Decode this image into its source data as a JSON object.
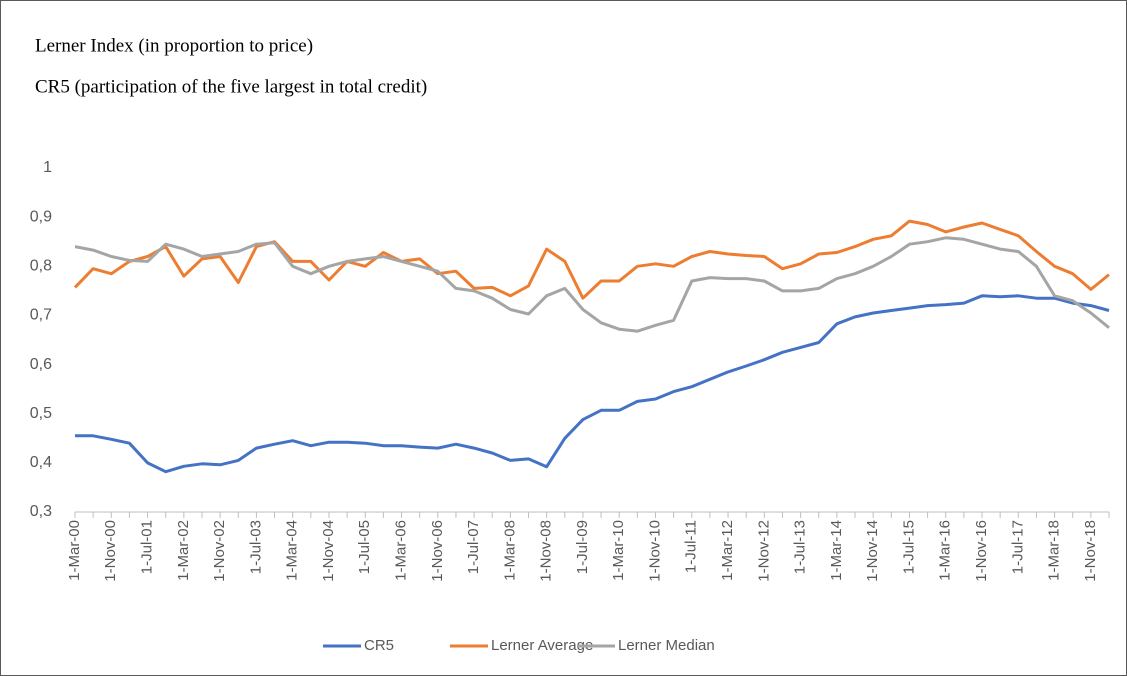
{
  "chart_data": {
    "type": "line",
    "title": "Lerner Index (in proportion to price)",
    "subtitle": "CR5 (participation of the five largest in total credit)",
    "categories": [
      "1-Mar-00",
      null,
      "1-Nov-00",
      null,
      "1-Jul-01",
      null,
      "1-Mar-02",
      null,
      "1-Nov-02",
      null,
      "1-Jul-03",
      null,
      "1-Mar-04",
      null,
      "1-Nov-04",
      null,
      "1-Jul-05",
      null,
      "1-Mar-06",
      null,
      "1-Nov-06",
      null,
      "1-Jul-07",
      null,
      "1-Mar-08",
      null,
      "1-Nov-08",
      null,
      "1-Jul-09",
      null,
      "1-Mar-10",
      null,
      "1-Nov-10",
      null,
      "1-Jul-11",
      null,
      "1-Mar-12",
      null,
      "1-Nov-12",
      null,
      "1-Jul-13",
      null,
      "1-Mar-14",
      null,
      "1-Nov-14",
      null,
      "1-Jul-15",
      null,
      "1-Mar-16",
      null,
      "1-Nov-16",
      null,
      "1-Jul-17",
      null,
      "1-Mar-18",
      null,
      "1-Nov-18",
      null
    ],
    "series": [
      {
        "name": "CR5",
        "color": "#4472c4",
        "values": [
          0.455,
          0.455,
          0.448,
          0.44,
          0.4,
          0.382,
          0.393,
          0.398,
          0.396,
          0.405,
          0.43,
          0.438,
          0.445,
          0.435,
          0.442,
          0.442,
          0.44,
          0.435,
          0.435,
          0.432,
          0.43,
          0.438,
          0.43,
          0.42,
          0.405,
          0.408,
          0.392,
          0.45,
          0.488,
          0.507,
          0.507,
          0.525,
          0.53,
          0.545,
          0.555,
          0.57,
          0.585,
          0.597,
          0.61,
          0.625,
          0.635,
          0.645,
          0.683,
          0.697,
          0.705,
          0.71,
          0.715,
          0.72,
          0.722,
          0.725,
          0.74,
          0.738,
          0.74,
          0.735,
          0.735,
          0.725,
          0.72,
          0.71
        ]
      },
      {
        "name": "Lerner Average",
        "color": "#ed7d31",
        "values": [
          0.757,
          0.795,
          0.785,
          0.81,
          0.82,
          0.84,
          0.78,
          0.815,
          0.82,
          0.767,
          0.84,
          0.85,
          0.81,
          0.81,
          0.772,
          0.81,
          0.8,
          0.828,
          0.81,
          0.815,
          0.785,
          0.79,
          0.755,
          0.757,
          0.74,
          0.76,
          0.835,
          0.81,
          0.735,
          0.77,
          0.77,
          0.8,
          0.805,
          0.8,
          0.82,
          0.83,
          0.825,
          0.822,
          0.82,
          0.795,
          0.805,
          0.825,
          0.828,
          0.84,
          0.855,
          0.862,
          0.892,
          0.885,
          0.87,
          0.88,
          0.888,
          0.875,
          0.862,
          0.83,
          0.8,
          0.785,
          0.753,
          0.783
        ]
      },
      {
        "name": "Lerner Median",
        "color": "#a5a5a5",
        "values": [
          0.84,
          0.833,
          0.82,
          0.812,
          0.81,
          0.845,
          0.835,
          0.82,
          0.825,
          0.83,
          0.845,
          0.848,
          0.8,
          0.785,
          0.8,
          0.81,
          0.815,
          0.82,
          0.81,
          0.8,
          0.79,
          0.755,
          0.75,
          0.735,
          0.712,
          0.703,
          0.74,
          0.755,
          0.712,
          0.685,
          0.672,
          0.668,
          0.68,
          0.69,
          0.77,
          0.777,
          0.775,
          0.775,
          0.77,
          0.75,
          0.75,
          0.755,
          0.775,
          0.785,
          0.8,
          0.82,
          0.845,
          0.85,
          0.858,
          0.855,
          0.845,
          0.835,
          0.83,
          0.8,
          0.74,
          0.73,
          0.705,
          0.675
        ]
      }
    ],
    "ylim": [
      0.3,
      1
    ],
    "yticks": [
      {
        "value": 0.3,
        "label": "0,3"
      },
      {
        "value": 0.4,
        "label": "0,4"
      },
      {
        "value": 0.5,
        "label": "0,5"
      },
      {
        "value": 0.6,
        "label": "0,6"
      },
      {
        "value": 0.7,
        "label": "0,7"
      },
      {
        "value": 0.8,
        "label": "0,8"
      },
      {
        "value": 0.9,
        "label": "0,9"
      },
      1
    ],
    "grid": false,
    "legend": "bottom"
  }
}
